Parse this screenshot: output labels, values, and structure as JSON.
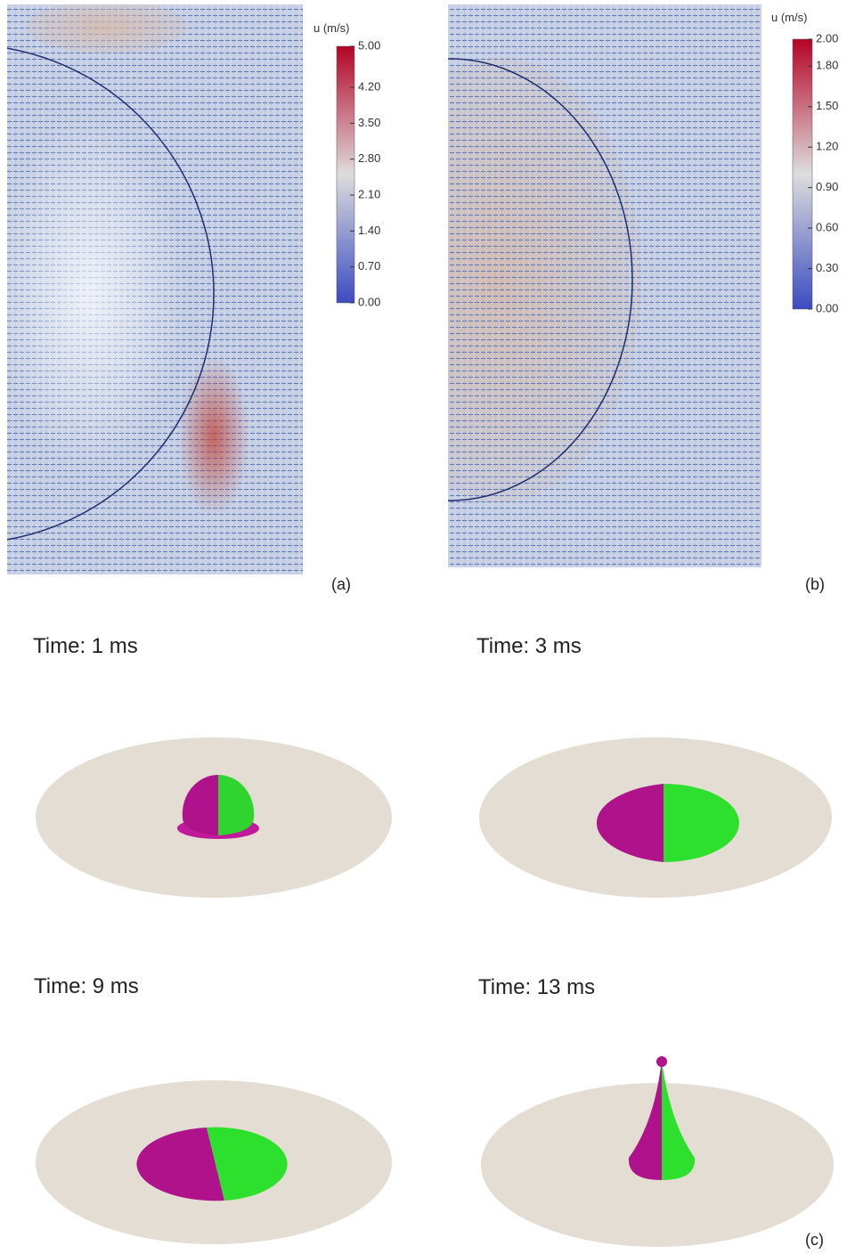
{
  "panel_a": {
    "label": "(a)",
    "colorbar": {
      "title": "u (m/s)",
      "range": [
        0,
        5
      ],
      "ticks": [
        {
          "value": 0,
          "label": "0.00"
        },
        {
          "value": 0.7,
          "label": "0.70"
        },
        {
          "value": 1.4,
          "label": "1.40"
        },
        {
          "value": 2.1,
          "label": "2.10"
        },
        {
          "value": 2.8,
          "label": "2.80"
        },
        {
          "value": 3.5,
          "label": "3.50"
        },
        {
          "value": 4.2,
          "label": "4.20"
        },
        {
          "value": 5,
          "label": "5.00"
        }
      ]
    }
  },
  "panel_b": {
    "label": "(b)",
    "colorbar": {
      "title": "u (m/s)",
      "range": [
        0,
        2
      ],
      "ticks": [
        {
          "value": 0,
          "label": "0.00"
        },
        {
          "value": 0.3,
          "label": "0.30"
        },
        {
          "value": 0.6,
          "label": "0.60"
        },
        {
          "value": 0.9,
          "label": "0.90"
        },
        {
          "value": 1.2,
          "label": "1.20"
        },
        {
          "value": 1.5,
          "label": "1.50"
        },
        {
          "value": 1.8,
          "label": "1.80"
        },
        {
          "value": 2,
          "label": "2.00"
        }
      ]
    }
  },
  "panel_c": {
    "label": "(c)",
    "frames": [
      "Time: 1 ms",
      "Time: 3 ms",
      "Time: 9 ms",
      "Time: 13 ms"
    ]
  }
}
